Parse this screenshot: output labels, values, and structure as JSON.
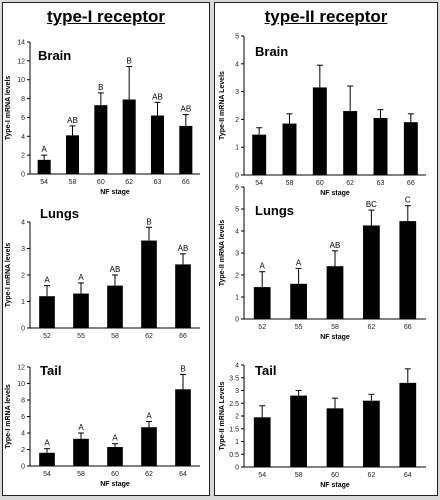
{
  "columns": [
    {
      "title": "type-I receptor"
    },
    {
      "title": "type-II receptor"
    }
  ],
  "chart_data": [
    {
      "type": "bar",
      "panel_title": "Brain",
      "categories": [
        "54",
        "58",
        "60",
        "62",
        "63",
        "66"
      ],
      "values": [
        1.5,
        4.1,
        7.3,
        7.9,
        6.2,
        5.1
      ],
      "errors": [
        0.5,
        1.0,
        1.3,
        3.5,
        1.4,
        1.2
      ],
      "letters": [
        "A",
        "AB",
        "B",
        "B",
        "AB",
        "AB"
      ],
      "xlabel": "NF stage",
      "ylabel": "Type-I mRNA levels",
      "ylim": [
        0,
        14
      ],
      "yticks": [
        "0",
        "2",
        "4",
        "6",
        "8",
        "10",
        "12",
        "14"
      ]
    },
    {
      "type": "bar",
      "panel_title": "Lungs",
      "categories": [
        "52",
        "55",
        "58",
        "62",
        "66"
      ],
      "values": [
        1.2,
        1.3,
        1.6,
        3.3,
        2.4
      ],
      "errors": [
        0.4,
        0.4,
        0.4,
        0.5,
        0.4
      ],
      "letters": [
        "A",
        "A",
        "AB",
        "B",
        "AB"
      ],
      "xlabel": "",
      "ylabel": "Type-I mRNA levels",
      "ylim": [
        0,
        4
      ],
      "yticks": [
        "0",
        "1",
        "2",
        "3",
        "4"
      ]
    },
    {
      "type": "bar",
      "panel_title": "Tail",
      "categories": [
        "54",
        "58",
        "60",
        "62",
        "64"
      ],
      "values": [
        1.6,
        3.3,
        2.3,
        4.7,
        9.3
      ],
      "errors": [
        0.5,
        0.7,
        0.4,
        0.7,
        1.8
      ],
      "letters": [
        "A",
        "A",
        "A",
        "A",
        "B"
      ],
      "xlabel": "NF stage",
      "ylabel": "Type-I mRNA levels",
      "ylim": [
        0,
        12
      ],
      "yticks": [
        "0",
        "2",
        "4",
        "6",
        "8",
        "10",
        "12"
      ]
    },
    {
      "type": "bar",
      "panel_title": "Brain",
      "categories": [
        "54",
        "58",
        "60",
        "62",
        "63",
        "66"
      ],
      "values": [
        1.45,
        1.85,
        3.15,
        2.3,
        2.05,
        1.9
      ],
      "errors": [
        0.25,
        0.35,
        0.8,
        0.9,
        0.3,
        0.3
      ],
      "letters": [],
      "xlabel": "NF stage",
      "ylabel": "Type-II mRNA Levels",
      "ylim": [
        0,
        5
      ],
      "yticks": [
        "0",
        "1",
        "2",
        "3",
        "4",
        "5"
      ]
    },
    {
      "type": "bar",
      "panel_title": "Lungs",
      "categories": [
        "52",
        "55",
        "58",
        "62",
        "66"
      ],
      "values": [
        1.45,
        1.6,
        2.4,
        4.25,
        4.45
      ],
      "errors": [
        0.7,
        0.7,
        0.7,
        0.7,
        0.7
      ],
      "letters": [
        "A",
        "A",
        "AB",
        "BC",
        "C"
      ],
      "xlabel": "NF stage",
      "ylabel": "Type-II mRNA levels",
      "ylim": [
        0,
        6
      ],
      "yticks": [
        "0",
        "1",
        "2",
        "3",
        "4",
        "5",
        "6"
      ]
    },
    {
      "type": "bar",
      "panel_title": "Tail",
      "categories": [
        "54",
        "58",
        "60",
        "62",
        "64"
      ],
      "values": [
        1.95,
        2.8,
        2.3,
        2.6,
        3.3
      ],
      "errors": [
        0.45,
        0.2,
        0.4,
        0.25,
        0.55
      ],
      "letters": [],
      "xlabel": "NF stage",
      "ylabel": "Type-II mRNA Levels",
      "ylim": [
        0,
        4
      ],
      "yticks": [
        "0",
        "0.5",
        "1",
        "1.5",
        "2",
        "2.5",
        "3",
        "3.5",
        "4"
      ]
    }
  ]
}
